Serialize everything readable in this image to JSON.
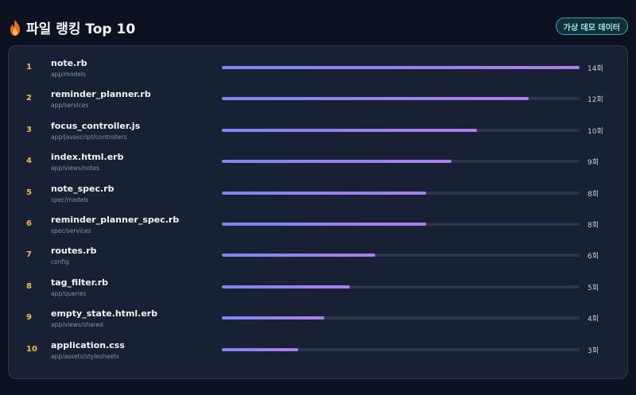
{
  "header": {
    "title": "파일 랭킹 Top 10",
    "badge": "가상 데모 데이터"
  },
  "colors": {
    "background": "#0c1220",
    "panel": "#172133",
    "rank": "#f5b94b",
    "bar_start": "#7f84f2",
    "bar_end": "#ad7ef0",
    "badge_border": "#3aa7b8"
  },
  "ranking": {
    "max": 14,
    "items": [
      {
        "rank": "1",
        "name": "note.rb",
        "path": "app/models",
        "value": 14,
        "count": "14회"
      },
      {
        "rank": "2",
        "name": "reminder_planner.rb",
        "path": "app/services",
        "value": 12,
        "count": "12회"
      },
      {
        "rank": "3",
        "name": "focus_controller.js",
        "path": "app/javascript/controllers",
        "value": 10,
        "count": "10회"
      },
      {
        "rank": "4",
        "name": "index.html.erb",
        "path": "app/views/notes",
        "value": 9,
        "count": "9회"
      },
      {
        "rank": "5",
        "name": "note_spec.rb",
        "path": "spec/models",
        "value": 8,
        "count": "8회"
      },
      {
        "rank": "6",
        "name": "reminder_planner_spec.rb",
        "path": "spec/services",
        "value": 8,
        "count": "8회"
      },
      {
        "rank": "7",
        "name": "routes.rb",
        "path": "config",
        "value": 6,
        "count": "6회"
      },
      {
        "rank": "8",
        "name": "tag_filter.rb",
        "path": "app/queries",
        "value": 5,
        "count": "5회"
      },
      {
        "rank": "9",
        "name": "empty_state.html.erb",
        "path": "app/views/shared",
        "value": 4,
        "count": "4회"
      },
      {
        "rank": "10",
        "name": "application.css",
        "path": "app/assets/stylesheets",
        "value": 3,
        "count": "3회"
      }
    ]
  }
}
